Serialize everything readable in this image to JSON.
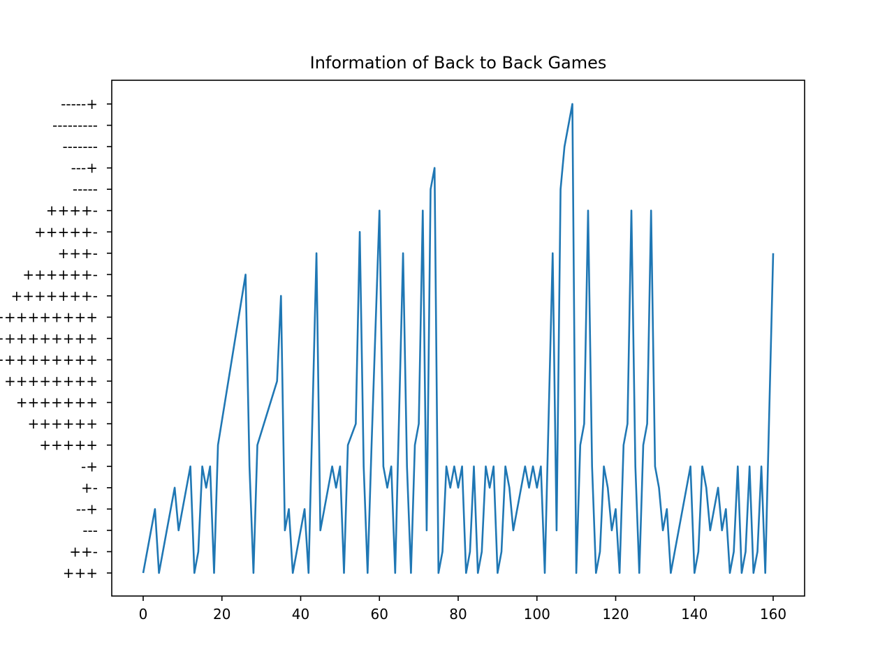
{
  "chart_data": {
    "type": "line",
    "title": "Information of Back to Back Games",
    "xlabel": "",
    "ylabel": "",
    "xlim": [
      -8,
      168
    ],
    "x_ticks": [
      0,
      20,
      40,
      60,
      80,
      100,
      120,
      140,
      160
    ],
    "y_categories": [
      "+++",
      "++-",
      "---",
      "--+",
      "+-",
      "-+",
      "+++++",
      "++++++",
      "+++++++",
      "++++++++",
      "+++++++++",
      "++++++++++",
      "+++++++++++",
      "+++++++-",
      "++++++-",
      "+++-",
      "+++++-",
      "++++-",
      "-----",
      "---+",
      "-------",
      "---------",
      "-----+"
    ],
    "grid": false,
    "legend": "none",
    "line_color": "#1f77b4",
    "series": [
      {
        "x": [
          0,
          3,
          4,
          6,
          8,
          9,
          12,
          13,
          14,
          15,
          16,
          17,
          18,
          19,
          26,
          27,
          28,
          29,
          34,
          35,
          36,
          37,
          38,
          41,
          42,
          44,
          45,
          48,
          49,
          50,
          51,
          52,
          54,
          55,
          56,
          57,
          58,
          60,
          61,
          62,
          63,
          64,
          66,
          67,
          68,
          69,
          70,
          71,
          72,
          73,
          74,
          75,
          76,
          77,
          78,
          79,
          80,
          81,
          82,
          83,
          84,
          85,
          86,
          87,
          88,
          89,
          90,
          91,
          92,
          93,
          94,
          97,
          98,
          99,
          100,
          101,
          102,
          104,
          105,
          106,
          107,
          109,
          110,
          111,
          112,
          113,
          114,
          115,
          116,
          117,
          118,
          119,
          120,
          121,
          122,
          123,
          124,
          125,
          126,
          127,
          128,
          129,
          130,
          131,
          132,
          133,
          134,
          139,
          140,
          141,
          142,
          143,
          144,
          146,
          147,
          148,
          149,
          150,
          151,
          152,
          153,
          154,
          155,
          156,
          157,
          158,
          160
        ],
        "y": [
          "+++",
          "--+",
          "+++",
          "---",
          "+-",
          "---",
          "-+",
          "+++",
          "++-",
          "-+",
          "+-",
          "-+",
          "+++",
          "+++++",
          "++++++-",
          "-+",
          "+++",
          "+++++",
          "++++++++",
          "+++++++-",
          "---",
          "--+",
          "+++",
          "--+",
          "+++",
          "+++-",
          "---",
          "-+",
          "+-",
          "-+",
          "+++",
          "+++++",
          "++++++",
          "+++++-",
          "-+",
          "+++",
          "+++++",
          "++++-",
          "-+",
          "+-",
          "-+",
          "+++",
          "+++-",
          "-+",
          "+++",
          "+++++",
          "++++++",
          "++++-",
          "---",
          "-----",
          "---+",
          "+++",
          "++-",
          "-+",
          "+-",
          "-+",
          "+-",
          "-+",
          "+++",
          "++-",
          "-+",
          "+++",
          "++-",
          "-+",
          "+-",
          "-+",
          "+++",
          "++-",
          "-+",
          "+-",
          "---",
          "-+",
          "+-",
          "-+",
          "+-",
          "-+",
          "+++",
          "+++-",
          "---",
          "-----",
          "-------",
          "-----+",
          "+++",
          "+++++",
          "++++++",
          "++++-",
          "-+",
          "+++",
          "++-",
          "-+",
          "+-",
          "---",
          "--+",
          "+++",
          "+++++",
          "++++++",
          "++++-",
          "-+",
          "+++",
          "+++++",
          "++++++",
          "++++-",
          "-+",
          "+-",
          "---",
          "--+",
          "+++",
          "-+",
          "+++",
          "++-",
          "-+",
          "+-",
          "---",
          "+-",
          "---",
          "--+",
          "+++",
          "++-",
          "-+",
          "+++",
          "++-",
          "-+",
          "+++",
          "++-",
          "-+",
          "+++",
          "+++-"
        ]
      }
    ]
  }
}
